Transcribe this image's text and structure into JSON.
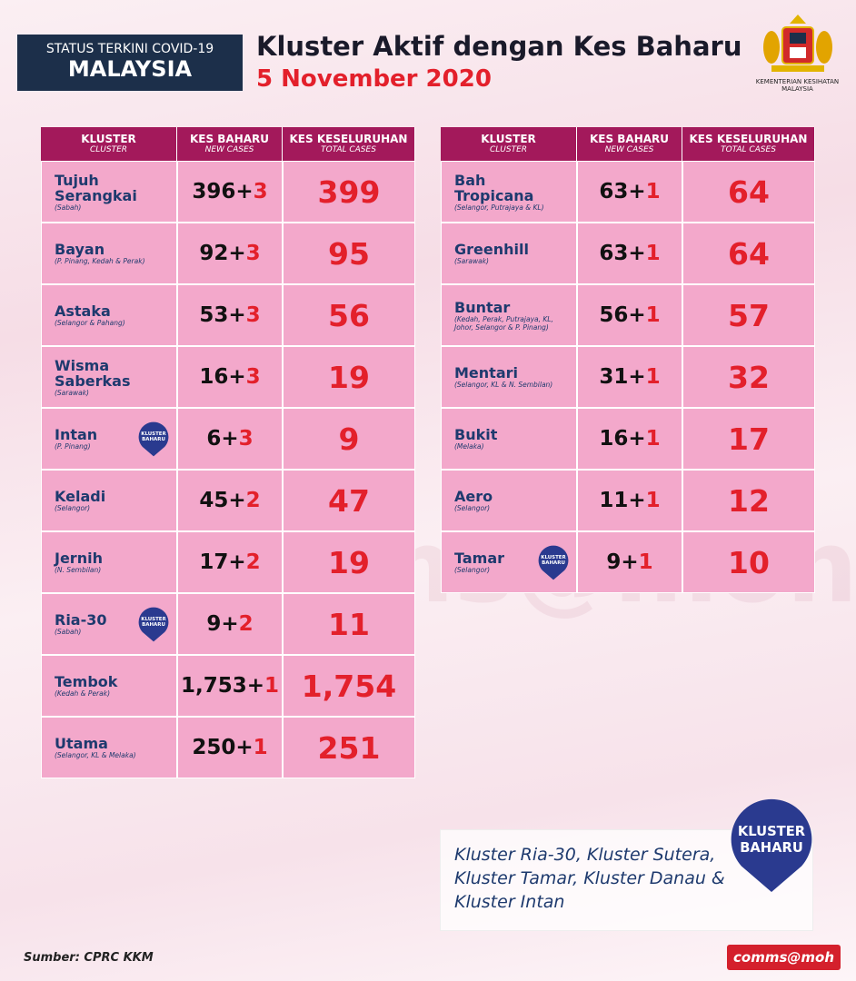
{
  "header": {
    "status_line1": "STATUS TERKINI COVID-19",
    "status_line2": "MALAYSIA",
    "title": "Kluster Aktif dengan Kes Baharu",
    "date": "5 November 2020",
    "ministry": "KEMENTERIAN KESIHATAN MALAYSIA"
  },
  "table_headers": [
    {
      "main": "KLUSTER",
      "sub": "CLUSTER"
    },
    {
      "main": "KES BAHARU",
      "sub": "NEW CASES"
    },
    {
      "main": "KES KESELURUHAN",
      "sub": "TOTAL CASES"
    }
  ],
  "badge": {
    "line1": "KLUSTER",
    "line2": "BAHARU"
  },
  "left_table": {
    "rows": [
      {
        "name": "Tujuh Serangkai",
        "location": "(Sabah)",
        "base": "396+",
        "new": "3",
        "total": "399"
      },
      {
        "name": "Bayan",
        "location": "(P. Pinang, Kedah & Perak)",
        "base": "92+",
        "new": "3",
        "total": "95"
      },
      {
        "name": "Astaka",
        "location": "(Selangor & Pahang)",
        "base": "53+",
        "new": "3",
        "total": "56"
      },
      {
        "name": "Wisma Saberkas",
        "location": "(Sarawak)",
        "base": "16+",
        "new": "3",
        "total": "19"
      },
      {
        "name": "Intan",
        "location": "(P. Pinang)",
        "base": "6+",
        "new": "3",
        "total": "9",
        "badge": true
      },
      {
        "name": "Keladi",
        "location": "(Selangor)",
        "base": "45+",
        "new": "2",
        "total": "47"
      },
      {
        "name": "Jernih",
        "location": "(N. Sembilan)",
        "base": "17+",
        "new": "2",
        "total": "19"
      },
      {
        "name": "Ria-30",
        "location": "(Sabah)",
        "base": "9+",
        "new": "2",
        "total": "11",
        "badge": true
      },
      {
        "name": "Tembok",
        "location": "(Kedah & Perak)",
        "base": "1,753+",
        "new": "1",
        "total": "1,754"
      },
      {
        "name": "Utama",
        "location": "(Selangor, KL & Melaka)",
        "base": "250+",
        "new": "1",
        "total": "251"
      }
    ]
  },
  "right_table": {
    "rows": [
      {
        "name": "Bah Tropicana",
        "location": "(Selangor, Putrajaya & KL)",
        "base": "63+",
        "new": "1",
        "total": "64"
      },
      {
        "name": "Greenhill",
        "location": "(Sarawak)",
        "base": "63+",
        "new": "1",
        "total": "64"
      },
      {
        "name": "Buntar",
        "location": "(Kedah, Perak, Putrajaya, KL, Johor, Selangor & P. Pinang)",
        "base": "56+",
        "new": "1",
        "total": "57"
      },
      {
        "name": "Mentari",
        "location": "(Selangor, KL & N. Sembilan)",
        "base": "31+",
        "new": "1",
        "total": "32"
      },
      {
        "name": "Bukit",
        "location": "(Melaka)",
        "base": "16+",
        "new": "1",
        "total": "17"
      },
      {
        "name": "Aero",
        "location": "(Selangor)",
        "base": "11+",
        "new": "1",
        "total": "12"
      },
      {
        "name": "Tamar",
        "location": "(Selangor)",
        "base": "9+",
        "new": "1",
        "total": "10",
        "badge": true
      }
    ]
  },
  "note": "Kluster Ria-30, Kluster Sutera, Kluster Tamar, Kluster Danau & Kluster Intan",
  "footer": {
    "source": "Sumber: CPRC KKM",
    "brand": "comms@moh"
  }
}
